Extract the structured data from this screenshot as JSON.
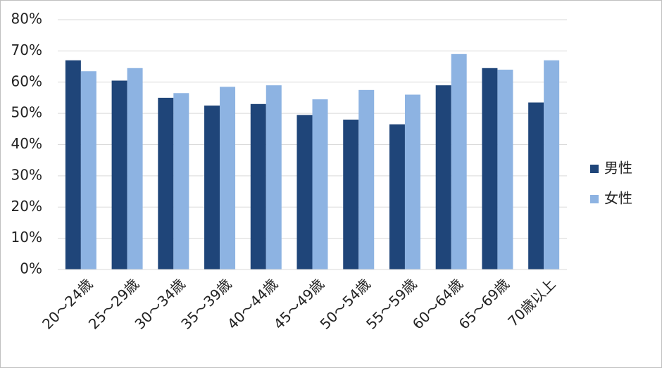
{
  "chart_data": {
    "type": "bar",
    "categories": [
      "20～24歳",
      "25～29歳",
      "30～34歳",
      "35～39歳",
      "40～44歳",
      "45～49歳",
      "50～54歳",
      "55～59歳",
      "60～64歳",
      "65～69歳",
      "70歳以上"
    ],
    "series": [
      {
        "name": "男性",
        "color": "#1f4579",
        "values": [
          67,
          60.5,
          55,
          52.5,
          53,
          49.5,
          48,
          46.5,
          59,
          64.5,
          53.5
        ]
      },
      {
        "name": "女性",
        "color": "#8db3e2",
        "values": [
          63.5,
          64.5,
          56.5,
          58.5,
          59,
          54.5,
          57.5,
          56,
          69,
          64,
          67
        ]
      }
    ],
    "ylim": [
      0,
      80
    ],
    "yticks": [
      {
        "value": 0,
        "label": "0%"
      },
      {
        "value": 10,
        "label": "10%"
      },
      {
        "value": 20,
        "label": "20%"
      },
      {
        "value": 30,
        "label": "30%"
      },
      {
        "value": 40,
        "label": "40%"
      },
      {
        "value": 50,
        "label": "50%"
      },
      {
        "value": 60,
        "label": "60%"
      },
      {
        "value": 70,
        "label": "70%"
      },
      {
        "value": 80,
        "label": "80%"
      }
    ],
    "grid": true,
    "legend": "right"
  }
}
